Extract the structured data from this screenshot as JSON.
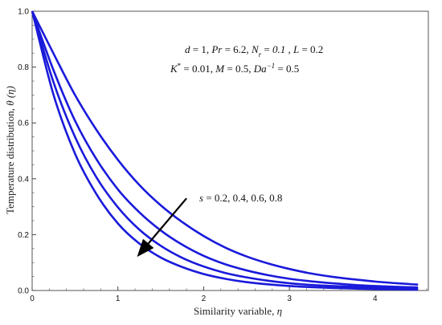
{
  "chart_data": {
    "type": "line",
    "title": "",
    "xlabel": "Similarity variable, η",
    "ylabel": "Temperature distribution, θ (η)",
    "xlim": [
      0,
      4.5
    ],
    "ylim": [
      0,
      1.0
    ],
    "x_ticks": [
      0,
      1,
      2,
      3,
      4
    ],
    "y_ticks": [
      0.0,
      0.2,
      0.4,
      0.6,
      0.8,
      1.0
    ],
    "x_tick_labels": [
      "0",
      "1",
      "2",
      "3",
      "4"
    ],
    "y_tick_labels": [
      "0.0",
      "0.2",
      "0.4",
      "0.6",
      "0.8",
      "1.0"
    ],
    "grid": false,
    "line_color": "#1a1adb",
    "x": [
      0,
      0.25,
      0.5,
      0.75,
      1.0,
      1.25,
      1.5,
      1.75,
      2.0,
      2.25,
      2.5,
      2.75,
      3.0,
      3.25,
      3.5,
      3.75,
      4.0,
      4.25,
      4.5
    ],
    "series": [
      {
        "values": [
          1.0,
          0.848,
          0.7,
          0.575,
          0.468,
          0.378,
          0.305,
          0.245,
          0.195,
          0.154,
          0.122,
          0.097,
          0.077,
          0.061,
          0.049,
          0.04,
          0.032,
          0.026,
          0.021
        ]
      },
      {
        "values": [
          1.0,
          0.788,
          0.608,
          0.47,
          0.362,
          0.28,
          0.215,
          0.164,
          0.124,
          0.094,
          0.072,
          0.055,
          0.042,
          0.033,
          0.026,
          0.02,
          0.016,
          0.013,
          0.011
        ]
      },
      {
        "values": [
          1.0,
          0.745,
          0.55,
          0.405,
          0.298,
          0.218,
          0.16,
          0.117,
          0.086,
          0.063,
          0.047,
          0.035,
          0.026,
          0.02,
          0.016,
          0.013,
          0.01,
          0.008,
          0.007
        ]
      },
      {
        "values": [
          1.0,
          0.7,
          0.49,
          0.345,
          0.24,
          0.168,
          0.118,
          0.084,
          0.059,
          0.042,
          0.03,
          0.022,
          0.016,
          0.012,
          0.009,
          0.007,
          0.005,
          0.004,
          0.003
        ]
      }
    ],
    "annotations": {
      "params_line1": "d = 1, Pr = 6.2, N_r = 0.1 , L = 0.2",
      "params_line2": "K* = 0.01, M = 0.5, Da^-1 = 0.5",
      "arrow_label": "s = 0.2, 0.4, 0.6, 0.8",
      "arrow_from": [
        1.8,
        0.33
      ],
      "arrow_to": [
        1.25,
        0.13
      ]
    }
  }
}
